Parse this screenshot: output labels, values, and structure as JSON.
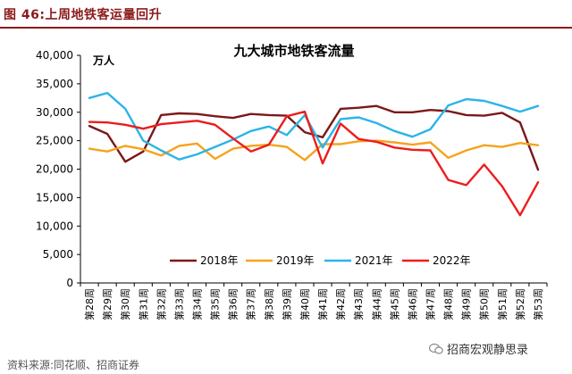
{
  "figure": {
    "title": "图 46:上周地铁客运量回升",
    "source": "资料来源:同花顺、招商证券",
    "watermark": "招商宏观静思录"
  },
  "colors": {
    "title_red": "#8b1a1a",
    "2018": "#7b1818",
    "2019": "#f5a31c",
    "2021": "#2bb4e8",
    "2022": "#ee1c1c"
  },
  "chart_data": {
    "type": "line",
    "title": "九大城市地铁客流量",
    "ylabel": "万人",
    "xlabel": "",
    "ylim": [
      0,
      40000
    ],
    "y_ticks": [
      "0",
      "5,000",
      "10,000",
      "15,000",
      "20,000",
      "25,000",
      "30,000",
      "35,000",
      "40,000"
    ],
    "grid": false,
    "legend": "bottom",
    "categories": [
      "第28周",
      "第29周",
      "第30周",
      "第31周",
      "第32周",
      "第33周",
      "第34周",
      "第35周",
      "第36周",
      "第37周",
      "第38周",
      "第39周",
      "第40周",
      "第41周",
      "第42周",
      "第43周",
      "第44周",
      "第45周",
      "第46周",
      "第47周",
      "第48周",
      "第49周",
      "第50周",
      "第51周",
      "第52周",
      "第53周"
    ],
    "series": [
      {
        "name": "2018年",
        "color": "#7b1818",
        "values": [
          27600,
          26200,
          21300,
          23100,
          29500,
          29800,
          29700,
          29300,
          29000,
          29700,
          29500,
          29400,
          26500,
          25600,
          30600,
          30800,
          31100,
          30000,
          30000,
          30400,
          30200,
          29500,
          29400,
          29900,
          28200,
          19900
        ]
      },
      {
        "name": "2019年",
        "color": "#f5a31c",
        "values": [
          23600,
          23100,
          24100,
          23500,
          22400,
          24100,
          24500,
          21800,
          23600,
          24100,
          24300,
          23900,
          21600,
          24400,
          24400,
          24900,
          25000,
          24700,
          24300,
          24700,
          22000,
          23300,
          24200,
          23900,
          24600,
          24200
        ]
      },
      {
        "name": "2021年",
        "color": "#2bb4e8",
        "values": [
          32500,
          33400,
          30600,
          25000,
          23300,
          21700,
          22600,
          23900,
          25200,
          26700,
          27500,
          26000,
          29500,
          23800,
          28800,
          29100,
          28100,
          26700,
          25700,
          27000,
          31200,
          32300,
          32000,
          31100,
          30100,
          31100
        ]
      },
      {
        "name": "2022年",
        "color": "#ee1c1c",
        "values": [
          28300,
          28200,
          27800,
          27100,
          27900,
          28200,
          28500,
          27800,
          25400,
          23100,
          24300,
          29300,
          30100,
          21000,
          28000,
          25300,
          24800,
          23800,
          23400,
          23300,
          18100,
          17200,
          20800,
          17000,
          11900,
          17700
        ]
      }
    ]
  }
}
